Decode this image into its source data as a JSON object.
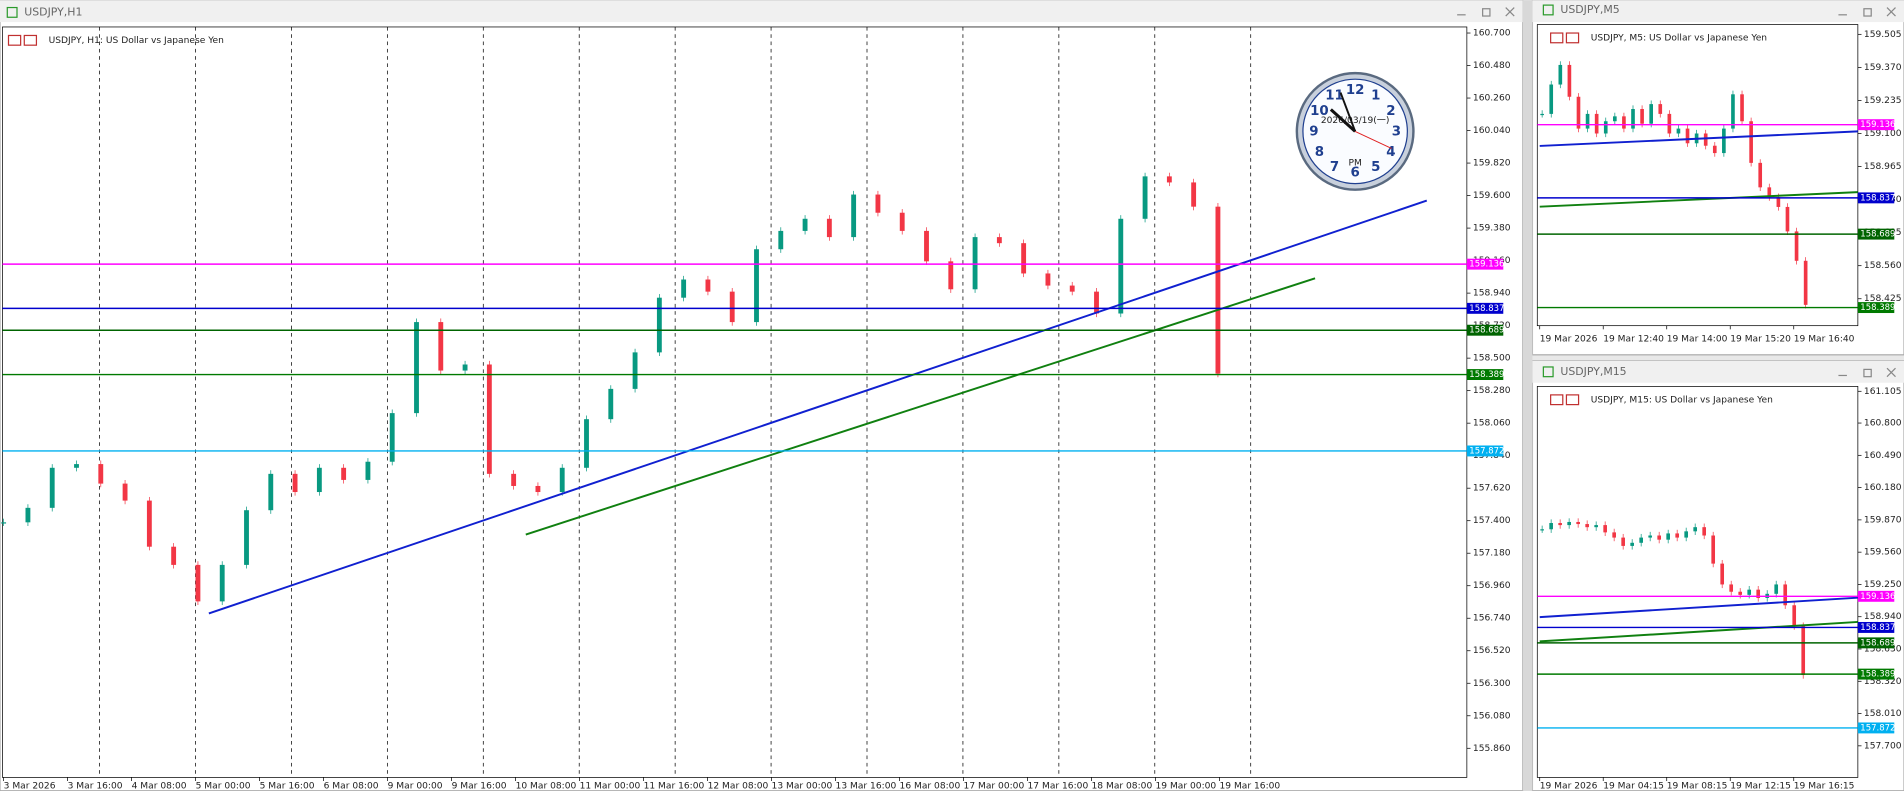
{
  "windows": [
    {
      "title": "USDJPY,H1",
      "label": "USDJPY, H1:  US Dollar vs Japanese Yen",
      "ylim": [
        155.663,
        160.741
      ],
      "yticks": [
        {
          "value": 160.7,
          "label": "160.700"
        },
        {
          "value": 160.48,
          "label": "160.480"
        },
        {
          "value": 160.26,
          "label": "160.260"
        },
        {
          "value": 160.04,
          "label": "160.040"
        },
        {
          "value": 159.82,
          "label": "159.820"
        },
        {
          "value": 159.6,
          "label": "159.600"
        },
        {
          "value": 159.38,
          "label": "159.380"
        },
        {
          "value": 159.16,
          "label": "159.160"
        },
        {
          "value": 158.94,
          "label": "158.940"
        },
        {
          "value": 158.72,
          "label": "158.720"
        },
        {
          "value": 158.5,
          "label": "158.500"
        },
        {
          "value": 158.28,
          "label": "158.280"
        },
        {
          "value": 158.06,
          "label": "158.060"
        },
        {
          "value": 157.84,
          "label": "157.840"
        },
        {
          "value": 157.62,
          "label": "157.620"
        },
        {
          "value": 157.4,
          "label": "157.400"
        },
        {
          "value": 157.18,
          "label": "157.180"
        },
        {
          "value": 156.96,
          "label": "156.960"
        },
        {
          "value": 156.74,
          "label": "156.740"
        },
        {
          "value": 156.52,
          "label": "156.520"
        },
        {
          "value": 156.3,
          "label": "156.300"
        },
        {
          "value": 156.08,
          "label": "156.080"
        },
        {
          "value": 155.86,
          "label": "155.860"
        }
      ],
      "times": [
        "3 Mar 2026",
        "3 Mar 16:00",
        "4 Mar 08:00",
        "5 Mar 00:00",
        "5 Mar 16:00",
        "6 Mar 08:00",
        "9 Mar 00:00",
        "9 Mar 16:00",
        "10 Mar 08:00",
        "11 Mar 00:00",
        "11 Mar 16:00",
        "12 Mar 08:00",
        "13 Mar 00:00",
        "13 Mar 16:00",
        "16 Mar 08:00",
        "17 Mar 00:00",
        "17 Mar 16:00",
        "18 Mar 08:00",
        "19 Mar 00:00",
        "19 Mar 16:00"
      ],
      "levels": [
        {
          "value": 159.136,
          "color": "#ff00ff"
        },
        {
          "value": 158.837,
          "color": "#0000cd"
        },
        {
          "value": 158.689,
          "color": "#006400"
        },
        {
          "value": 158.389,
          "color": "#007a00"
        },
        {
          "value": 157.872,
          "color": "#00b0f0"
        }
      ],
      "closes": [
        157.389,
        157.487,
        157.758,
        157.783,
        157.651,
        157.536,
        157.224,
        157.101,
        156.854,
        157.101,
        157.471,
        157.717,
        157.594,
        157.758,
        157.676,
        157.799,
        158.128,
        158.744,
        158.416,
        158.457,
        157.717,
        157.635,
        157.594,
        157.758,
        158.087,
        158.292,
        158.539,
        158.909,
        159.032,
        158.95,
        158.744,
        159.237,
        159.361,
        159.443,
        159.319,
        159.607,
        159.484,
        159.361,
        159.155,
        158.966,
        159.319,
        159.278,
        159.073,
        158.991,
        158.95,
        158.802,
        159.443,
        159.73,
        159.689,
        159.525,
        158.395
      ]
    },
    {
      "title": "USDJPY,M5",
      "label": "USDJPY, M5:  US Dollar vs Japanese Yen",
      "ylim": [
        158.315,
        159.545
      ],
      "yticks": [
        159.505,
        {
          "value": 159.37,
          "label": "159.370"
        },
        159.235,
        {
          "value": 159.1,
          "label": "159.100"
        },
        158.965,
        {
          "value": 158.83,
          "label": "158.830"
        },
        158.695,
        {
          "value": 158.56,
          "label": "158.560"
        },
        158.425
      ],
      "times": [
        "19 Mar 2026",
        "19 Mar 12:40",
        "19 Mar 14:00",
        "19 Mar 15:20",
        "19 Mar 16:40"
      ],
      "levels": [
        {
          "value": 159.136,
          "color": "#ff00ff"
        },
        {
          "value": 158.837,
          "color": "#0000cd"
        },
        {
          "value": 158.689,
          "color": "#006400"
        },
        {
          "value": 158.389,
          "color": "#007a00"
        }
      ],
      "closes": [
        159.18,
        159.3,
        159.38,
        159.25,
        159.12,
        159.18,
        159.1,
        159.15,
        159.17,
        159.12,
        159.2,
        159.14,
        159.22,
        159.18,
        159.1,
        159.12,
        159.06,
        159.1,
        159.05,
        159.02,
        159.12,
        159.26,
        159.15,
        158.98,
        158.88,
        158.84,
        158.8,
        158.7,
        158.58,
        158.4
      ]
    },
    {
      "title": "USDJPY,M15",
      "label": "USDJPY, M15:  US Dollar vs Japanese Yen",
      "ylim": [
        157.397,
        161.152
      ],
      "yticks": [
        161.105,
        {
          "value": 160.8,
          "label": "160.800"
        },
        {
          "value": 160.49,
          "label": "160.490"
        },
        {
          "value": 160.18,
          "label": "160.180"
        },
        {
          "value": 159.87,
          "label": "159.870"
        },
        {
          "value": 159.56,
          "label": "159.560"
        },
        {
          "value": 159.25,
          "label": "159.250"
        },
        {
          "value": 158.94,
          "label": "158.940"
        },
        {
          "value": 158.63,
          "label": "158.630"
        },
        {
          "value": 158.32,
          "label": "158.320"
        },
        {
          "value": 158.01,
          "label": "158.010"
        },
        {
          "value": 157.7,
          "label": "157.700"
        }
      ],
      "times": [
        "19 Mar 2026",
        "19 Mar 04:15",
        "19 Mar 08:15",
        "19 Mar 12:15",
        "19 Mar 16:15"
      ],
      "levels": [
        {
          "value": 159.136,
          "color": "#ff00ff"
        },
        {
          "value": 158.837,
          "color": "#0000cd"
        },
        {
          "value": 158.689,
          "color": "#006400"
        },
        {
          "value": 158.389,
          "color": "#007a00"
        },
        {
          "value": 157.872,
          "color": "#00b0f0"
        }
      ],
      "closes": [
        159.78,
        159.84,
        159.82,
        159.85,
        159.83,
        159.8,
        159.82,
        159.75,
        159.7,
        159.62,
        159.65,
        159.7,
        159.72,
        159.68,
        159.74,
        159.7,
        159.76,
        159.8,
        159.72,
        159.45,
        159.25,
        159.18,
        159.15,
        159.2,
        159.12,
        159.16,
        159.25,
        159.05,
        158.85,
        158.38
      ]
    }
  ],
  "clock": {
    "numerals": [
      "12",
      "1",
      "2",
      "3",
      "4",
      "5",
      "6",
      "7",
      "8",
      "9",
      "10",
      "11"
    ],
    "date": "2026/03/19(一)",
    "period": "PM"
  }
}
